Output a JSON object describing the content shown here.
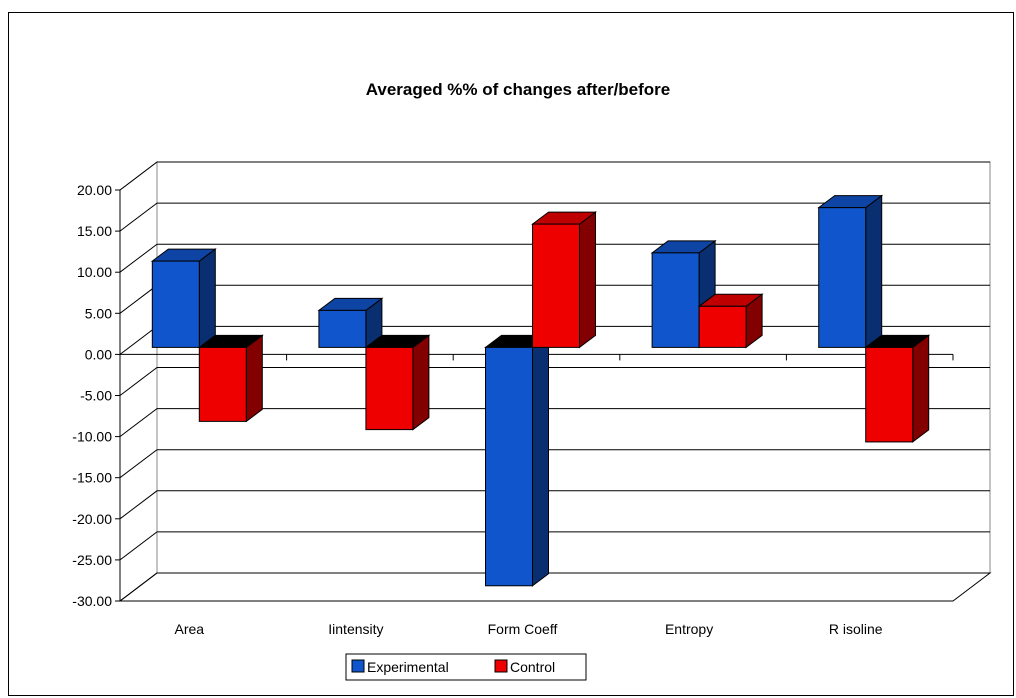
{
  "chart_data": {
    "type": "bar",
    "title": "Averaged %% of changes after/before",
    "xlabel": "",
    "ylabel": "",
    "categories": [
      "Area",
      "Iintensity",
      "Form Coeff",
      "Entropy",
      "R  isoline"
    ],
    "series": [
      {
        "name": "Experimental",
        "values": [
          10.5,
          4.5,
          -29.0,
          11.5,
          17.0
        ],
        "color": "#1155cc"
      },
      {
        "name": "Control",
        "values": [
          -9.0,
          -10.0,
          15.0,
          5.0,
          -11.5
        ],
        "color": "#ee0000"
      }
    ],
    "ylim": [
      -30,
      20
    ],
    "ytick_step": 5,
    "ytick_labels": [
      "-30.00",
      "-25.00",
      "-20.00",
      "-15.00",
      "-10.00",
      "-5.00",
      "0.00",
      "5.00",
      "10.00",
      "15.00",
      "20.00"
    ],
    "grid": true,
    "style": "3d",
    "legend_position": "bottom"
  }
}
